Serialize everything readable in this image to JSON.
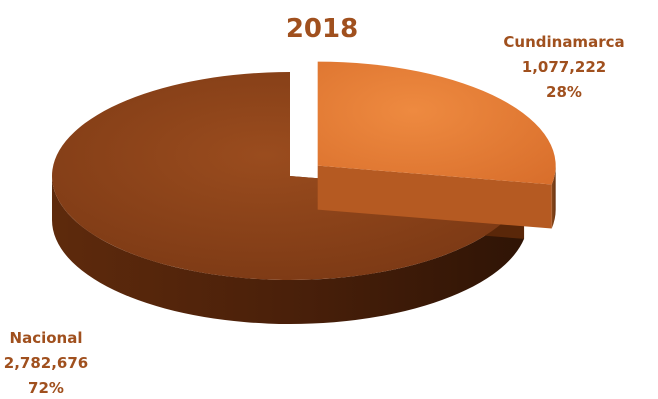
{
  "chart_data": {
    "type": "pie",
    "title": "2018",
    "style": "3d-exploded",
    "slices": [
      {
        "name": "Cundinamarca",
        "value": 1077222,
        "value_label": "1,077,222",
        "percent_label": "28%",
        "color": "#e57c34",
        "exploded": true
      },
      {
        "name": "Nacional",
        "value": 2782676,
        "value_label": "2,782,676",
        "percent_label": "72%",
        "color": "#8a4118",
        "exploded": false
      }
    ],
    "label_color": "#a0501e",
    "title_color": "#a0501e"
  }
}
